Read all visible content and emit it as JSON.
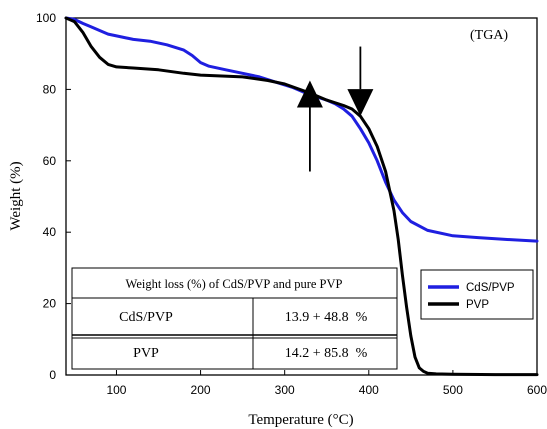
{
  "chart_data": {
    "type": "line",
    "annotation": "(TGA)",
    "xlabel": "Temperature (°C)",
    "ylabel": "Weight (%)",
    "xlim": [
      40,
      600
    ],
    "ylim": [
      0,
      100
    ],
    "x_ticks": [
      100,
      200,
      300,
      400,
      500,
      600
    ],
    "y_ticks": [
      0,
      20,
      40,
      60,
      80,
      100
    ],
    "grid": false,
    "legend_position": "bottom-right",
    "series": [
      {
        "name": "CdS/PVP",
        "color": "#1f1fe0",
        "x": [
          40,
          50,
          60,
          70,
          80,
          90,
          100,
          120,
          140,
          160,
          180,
          190,
          200,
          210,
          230,
          250,
          270,
          290,
          310,
          330,
          350,
          360,
          370,
          380,
          390,
          400,
          410,
          420,
          430,
          440,
          450,
          470,
          500,
          530,
          560,
          600
        ],
        "y": [
          100,
          99.6,
          98.5,
          97.5,
          96.5,
          95.5,
          95,
          94,
          93.5,
          92.5,
          91,
          89.5,
          87.5,
          86.5,
          85.5,
          84.5,
          83.5,
          82,
          80.5,
          78.5,
          77,
          76,
          74.5,
          72.5,
          69,
          65,
          60,
          54,
          49,
          45.5,
          43,
          40.5,
          39,
          38.5,
          38,
          37.5
        ]
      },
      {
        "name": "PVP",
        "color": "#000000",
        "x": [
          40,
          50,
          60,
          70,
          80,
          90,
          100,
          120,
          150,
          180,
          200,
          250,
          280,
          300,
          330,
          350,
          370,
          380,
          390,
          400,
          410,
          420,
          430,
          435,
          440,
          445,
          450,
          455,
          460,
          465,
          470,
          480,
          500,
          550,
          600
        ],
        "y": [
          100,
          99,
          96,
          92,
          89,
          87,
          86.3,
          86,
          85.5,
          84.5,
          84,
          83.5,
          82.5,
          81.5,
          79,
          77,
          75.5,
          74.5,
          72.5,
          69,
          64,
          57,
          46,
          38,
          28,
          19,
          11,
          5,
          2,
          1,
          0.5,
          0.3,
          0.2,
          0.1,
          0.1
        ]
      }
    ],
    "arrows": [
      {
        "direction": "up",
        "x": 330,
        "y_tip": 82.5,
        "y_tail": 57
      },
      {
        "direction": "down",
        "x": 390,
        "y_tip": 72.5,
        "y_tail": 92
      }
    ],
    "inset_table": {
      "title": "Weight loss (%) of CdS/PVP and pure PVP",
      "rows": [
        {
          "sample": "CdS/PVP",
          "value": "13.9 + 48.8  %"
        },
        {
          "sample": "PVP",
          "value": "14.2 + 85.8  %"
        }
      ]
    }
  }
}
